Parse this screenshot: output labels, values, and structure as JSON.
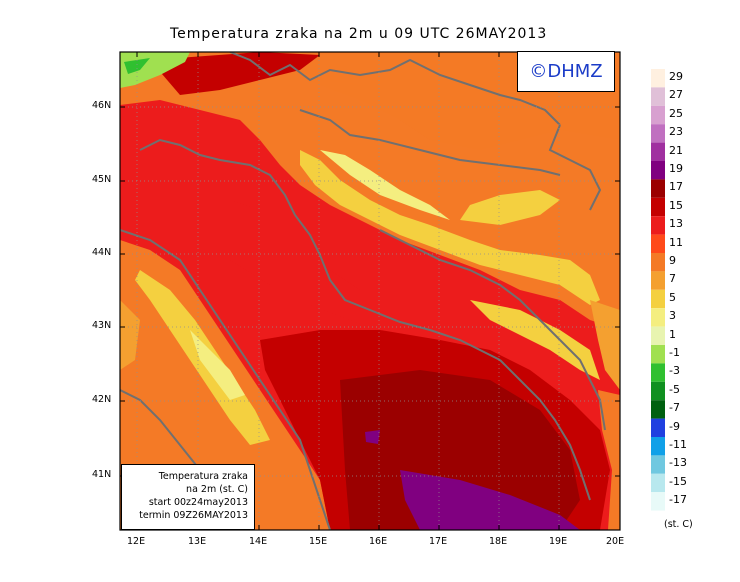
{
  "title": "Temperatura zraka na 2m u 09 UTC 26MAY2013",
  "logo_text": "©DHMZ",
  "info_box": {
    "line1": "Temperatura zraka",
    "line2": "na 2m (st. C)",
    "line3": "start 00z24may2013",
    "line4": "termin 09Z26MAY2013"
  },
  "lat_labels": [
    "46N",
    "45N",
    "44N",
    "43N",
    "42N",
    "41N"
  ],
  "lon_labels": [
    "12E",
    "13E",
    "14E",
    "15E",
    "16E",
    "17E",
    "18E",
    "19E",
    "20E"
  ],
  "colorbar": {
    "unit": "(st. C)",
    "levels": [
      29,
      27,
      25,
      23,
      21,
      19,
      17,
      15,
      13,
      11,
      9,
      7,
      5,
      3,
      1,
      -1,
      -3,
      -5,
      -7,
      -9,
      -11,
      -13,
      -15,
      -17
    ],
    "colors": [
      "#fff0e0",
      "#e0c0d8",
      "#d8a0d0",
      "#c070c0",
      "#a030a0",
      "#800080",
      "#9b0000",
      "#c40000",
      "#ec1c1c",
      "#ff4a1a",
      "#f47a26",
      "#f4a030",
      "#f4d040",
      "#f4ee80",
      "#e8f4b0",
      "#a0e050",
      "#30c030",
      "#109020",
      "#006010",
      "#2040e0",
      "#10a0e8",
      "#70c8e0",
      "#b8e8ee",
      "#e8faf8"
    ]
  }
}
